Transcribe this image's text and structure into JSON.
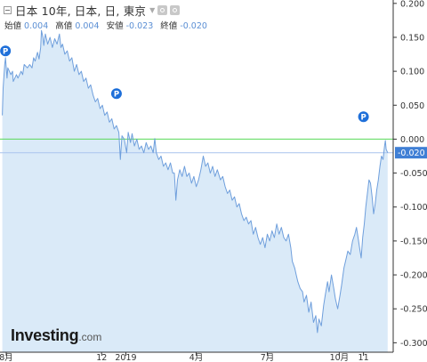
{
  "header": {
    "title": "日本 10年, 日本, 日, 東京",
    "ohlc": [
      {
        "label": "始値",
        "value": "0.004"
      },
      {
        "label": "高値",
        "value": "0.004"
      },
      {
        "label": "安値",
        "value": "-0.023"
      },
      {
        "label": "終値",
        "value": "-0.020"
      }
    ]
  },
  "logo": {
    "main": "Investing",
    "suffix": ".com"
  },
  "colors": {
    "line": "#6f9fdc",
    "area": "#daeaf8",
    "zero_line": "#57d957",
    "last_price_line": "#a9c3ee",
    "last_price_tag": "#3f7fd5",
    "marker": "#1e6fd9",
    "axis_text": "#333333"
  },
  "chart_data": {
    "type": "area",
    "title": "日本 10年, 日本, 日, 東京",
    "x_tick_labels": [
      "8月",
      "12",
      "2019",
      "4月",
      "7月",
      "10月",
      "11"
    ],
    "y_tick_labels": [
      "0.200",
      "0.150",
      "0.100",
      "0.050",
      "0.000",
      "-0.050",
      "-0.100",
      "-0.150",
      "-0.200",
      "-0.250",
      "-0.300"
    ],
    "ylim": [
      -0.31,
      0.205
    ],
    "reference_line": 0.0,
    "last_price": -0.02,
    "last_price_label": "-0.020",
    "marker_label": "P",
    "markers": [
      {
        "x": "2018-07-31",
        "y": 0.13
      },
      {
        "x": "2018-12-20",
        "y": 0.067
      },
      {
        "x": "2019-11-01",
        "y": 0.033
      }
    ],
    "grid": false,
    "series": [
      {
        "points": [
          [
            "2018-07-27",
            0.035
          ],
          [
            "2018-07-28",
            0.075
          ],
          [
            "2018-07-30",
            0.11
          ],
          [
            "2018-07-31",
            0.12
          ],
          [
            "2018-08-02",
            0.09
          ],
          [
            "2018-08-03",
            0.105
          ],
          [
            "2018-08-05",
            0.1
          ],
          [
            "2018-08-07",
            0.095
          ],
          [
            "2018-08-09",
            0.1
          ],
          [
            "2018-08-10",
            0.085
          ],
          [
            "2018-08-14",
            0.095
          ],
          [
            "2018-08-16",
            0.09
          ],
          [
            "2018-08-20",
            0.1
          ],
          [
            "2018-08-22",
            0.095
          ],
          [
            "2018-08-24",
            0.11
          ],
          [
            "2018-08-28",
            0.105
          ],
          [
            "2018-08-31",
            0.11
          ],
          [
            "2018-09-03",
            0.105
          ],
          [
            "2018-09-05",
            0.12
          ],
          [
            "2018-09-07",
            0.115
          ],
          [
            "2018-09-10",
            0.128
          ],
          [
            "2018-09-12",
            0.118
          ],
          [
            "2018-09-14",
            0.135
          ],
          [
            "2018-09-15",
            0.16
          ],
          [
            "2018-09-17",
            0.15
          ],
          [
            "2018-09-18",
            0.138
          ],
          [
            "2018-09-20",
            0.155
          ],
          [
            "2018-09-23",
            0.14
          ],
          [
            "2018-09-26",
            0.15
          ],
          [
            "2018-09-29",
            0.135
          ],
          [
            "2018-10-02",
            0.148
          ],
          [
            "2018-10-05",
            0.14
          ],
          [
            "2018-10-08",
            0.155
          ],
          [
            "2018-10-10",
            0.135
          ],
          [
            "2018-10-12",
            0.14
          ],
          [
            "2018-10-15",
            0.125
          ],
          [
            "2018-10-18",
            0.13
          ],
          [
            "2018-10-21",
            0.115
          ],
          [
            "2018-10-24",
            0.12
          ],
          [
            "2018-10-27",
            0.1
          ],
          [
            "2018-10-30",
            0.11
          ],
          [
            "2018-11-02",
            0.095
          ],
          [
            "2018-11-05",
            0.1
          ],
          [
            "2018-11-08",
            0.085
          ],
          [
            "2018-11-11",
            0.09
          ],
          [
            "2018-11-14",
            0.075
          ],
          [
            "2018-11-17",
            0.08
          ],
          [
            "2018-11-20",
            0.065
          ],
          [
            "2018-11-23",
            0.055
          ],
          [
            "2018-11-26",
            0.06
          ],
          [
            "2018-11-29",
            0.045
          ],
          [
            "2018-12-02",
            0.05
          ],
          [
            "2018-12-05",
            0.035
          ],
          [
            "2018-12-08",
            0.04
          ],
          [
            "2018-12-11",
            0.025
          ],
          [
            "2018-12-14",
            0.03
          ],
          [
            "2018-12-17",
            0.015
          ],
          [
            "2018-12-20",
            0.02
          ],
          [
            "2018-12-23",
            0.01
          ],
          [
            "2018-12-25",
            -0.03
          ],
          [
            "2018-12-27",
            0.005
          ],
          [
            "2018-12-30",
            0.0
          ],
          [
            "2019-01-02",
            -0.02
          ],
          [
            "2019-01-04",
            0.01
          ],
          [
            "2019-01-07",
            -0.005
          ],
          [
            "2019-01-09",
            0.008
          ],
          [
            "2019-01-12",
            -0.01
          ],
          [
            "2019-01-15",
            0.0
          ],
          [
            "2019-01-18",
            -0.015
          ],
          [
            "2019-01-21",
            -0.01
          ],
          [
            "2019-01-24",
            -0.02
          ],
          [
            "2019-01-27",
            -0.005
          ],
          [
            "2019-01-30",
            -0.015
          ],
          [
            "2019-02-02",
            -0.01
          ],
          [
            "2019-02-05",
            -0.02
          ],
          [
            "2019-02-07",
            0.001
          ],
          [
            "2019-02-09",
            -0.02
          ],
          [
            "2019-02-12",
            -0.03
          ],
          [
            "2019-02-15",
            -0.025
          ],
          [
            "2019-02-18",
            -0.04
          ],
          [
            "2019-02-21",
            -0.035
          ],
          [
            "2019-02-24",
            -0.045
          ],
          [
            "2019-02-27",
            -0.035
          ],
          [
            "2019-03-02",
            -0.05
          ],
          [
            "2019-03-04",
            -0.05
          ],
          [
            "2019-03-06",
            -0.09
          ],
          [
            "2019-03-08",
            -0.06
          ],
          [
            "2019-03-11",
            -0.045
          ],
          [
            "2019-03-14",
            -0.055
          ],
          [
            "2019-03-17",
            -0.04
          ],
          [
            "2019-03-20",
            -0.055
          ],
          [
            "2019-03-23",
            -0.05
          ],
          [
            "2019-03-26",
            -0.065
          ],
          [
            "2019-03-29",
            -0.055
          ],
          [
            "2019-04-01",
            -0.07
          ],
          [
            "2019-04-04",
            -0.06
          ],
          [
            "2019-04-07",
            -0.045
          ],
          [
            "2019-04-10",
            -0.025
          ],
          [
            "2019-04-13",
            -0.04
          ],
          [
            "2019-04-16",
            -0.035
          ],
          [
            "2019-04-19",
            -0.05
          ],
          [
            "2019-04-22",
            -0.04
          ],
          [
            "2019-04-25",
            -0.055
          ],
          [
            "2019-04-28",
            -0.045
          ],
          [
            "2019-05-02",
            -0.06
          ],
          [
            "2019-05-05",
            -0.055
          ],
          [
            "2019-05-08",
            -0.07
          ],
          [
            "2019-05-11",
            -0.08
          ],
          [
            "2019-05-14",
            -0.075
          ],
          [
            "2019-05-17",
            -0.09
          ],
          [
            "2019-05-20",
            -0.085
          ],
          [
            "2019-05-23",
            -0.1
          ],
          [
            "2019-05-26",
            -0.095
          ],
          [
            "2019-05-29",
            -0.11
          ],
          [
            "2019-06-01",
            -0.12
          ],
          [
            "2019-06-04",
            -0.115
          ],
          [
            "2019-06-07",
            -0.125
          ],
          [
            "2019-06-10",
            -0.12
          ],
          [
            "2019-06-13",
            -0.14
          ],
          [
            "2019-06-16",
            -0.13
          ],
          [
            "2019-06-19",
            -0.145
          ],
          [
            "2019-06-22",
            -0.155
          ],
          [
            "2019-06-25",
            -0.145
          ],
          [
            "2019-06-28",
            -0.16
          ],
          [
            "2019-07-01",
            -0.14
          ],
          [
            "2019-07-04",
            -0.15
          ],
          [
            "2019-07-07",
            -0.135
          ],
          [
            "2019-07-10",
            -0.145
          ],
          [
            "2019-07-13",
            -0.125
          ],
          [
            "2019-07-16",
            -0.14
          ],
          [
            "2019-07-19",
            -0.13
          ],
          [
            "2019-07-22",
            -0.145
          ],
          [
            "2019-07-25",
            -0.15
          ],
          [
            "2019-07-28",
            -0.14
          ],
          [
            "2019-07-31",
            -0.16
          ],
          [
            "2019-08-02",
            -0.18
          ],
          [
            "2019-08-05",
            -0.19
          ],
          [
            "2019-08-07",
            -0.2
          ],
          [
            "2019-08-09",
            -0.21
          ],
          [
            "2019-08-12",
            -0.22
          ],
          [
            "2019-08-15",
            -0.225
          ],
          [
            "2019-08-17",
            -0.24
          ],
          [
            "2019-08-20",
            -0.23
          ],
          [
            "2019-08-23",
            -0.255
          ],
          [
            "2019-08-26",
            -0.24
          ],
          [
            "2019-08-29",
            -0.27
          ],
          [
            "2019-09-01",
            -0.26
          ],
          [
            "2019-09-03",
            -0.285
          ],
          [
            "2019-09-05",
            -0.265
          ],
          [
            "2019-09-08",
            -0.275
          ],
          [
            "2019-09-11",
            -0.245
          ],
          [
            "2019-09-13",
            -0.23
          ],
          [
            "2019-09-16",
            -0.21
          ],
          [
            "2019-09-18",
            -0.225
          ],
          [
            "2019-09-21",
            -0.2
          ],
          [
            "2019-09-24",
            -0.22
          ],
          [
            "2019-09-26",
            -0.235
          ],
          [
            "2019-09-29",
            -0.25
          ],
          [
            "2019-10-02",
            -0.23
          ],
          [
            "2019-10-04",
            -0.215
          ],
          [
            "2019-10-07",
            -0.19
          ],
          [
            "2019-10-09",
            -0.18
          ],
          [
            "2019-10-12",
            -0.165
          ],
          [
            "2019-10-15",
            -0.17
          ],
          [
            "2019-10-18",
            -0.15
          ],
          [
            "2019-10-21",
            -0.14
          ],
          [
            "2019-10-23",
            -0.13
          ],
          [
            "2019-10-25",
            -0.145
          ],
          [
            "2019-10-27",
            -0.16
          ],
          [
            "2019-10-29",
            -0.175
          ],
          [
            "2019-10-31",
            -0.145
          ],
          [
            "2019-11-02",
            -0.125
          ],
          [
            "2019-11-04",
            -0.1
          ],
          [
            "2019-11-06",
            -0.08
          ],
          [
            "2019-11-08",
            -0.06
          ],
          [
            "2019-11-10",
            -0.065
          ],
          [
            "2019-11-12",
            -0.085
          ],
          [
            "2019-11-14",
            -0.11
          ],
          [
            "2019-11-16",
            -0.095
          ],
          [
            "2019-11-18",
            -0.075
          ],
          [
            "2019-11-20",
            -0.06
          ],
          [
            "2019-11-22",
            -0.04
          ],
          [
            "2019-11-24",
            -0.025
          ],
          [
            "2019-11-26",
            -0.03
          ],
          [
            "2019-11-28",
            -0.01
          ],
          [
            "2019-11-29",
            -0.002
          ],
          [
            "2019-11-30",
            -0.015
          ],
          [
            "2019-12-02",
            -0.02
          ]
        ]
      }
    ]
  }
}
